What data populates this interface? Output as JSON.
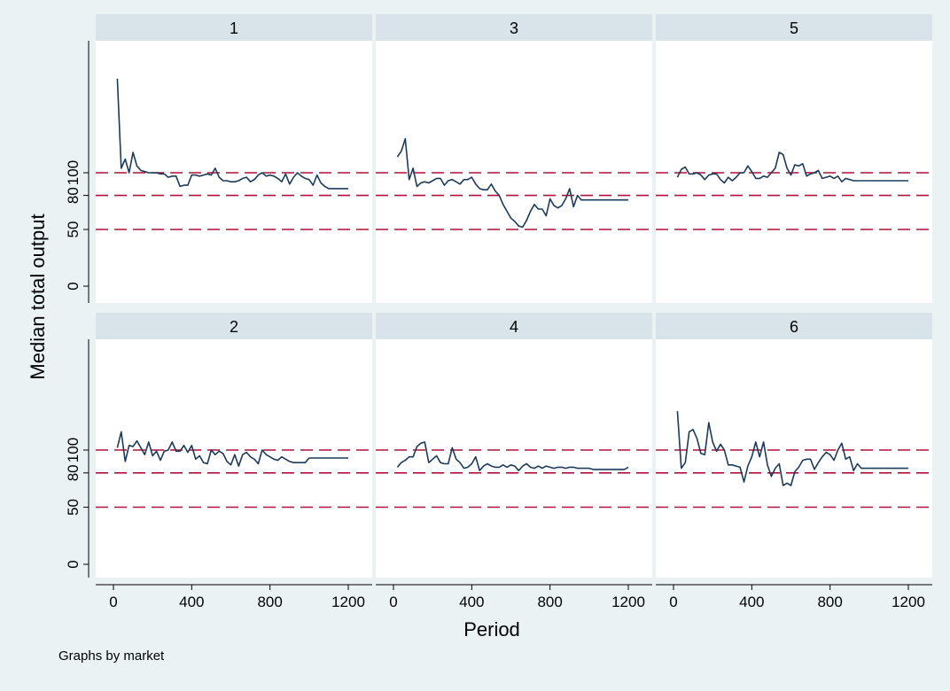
{
  "chart_data": {
    "type": "line",
    "xlabel": "Period",
    "ylabel": "Median total output",
    "note": "Graphs by market",
    "xlim": [
      0,
      1250
    ],
    "ylim": [
      -10,
      185
    ],
    "x_ticks": [
      0,
      400,
      800,
      1200
    ],
    "x_tick_labels": [
      "0",
      "400",
      "800",
      "1200"
    ],
    "y_ticks": [
      0,
      50,
      80,
      100
    ],
    "y_tick_labels": [
      "0",
      "50",
      "80",
      "100"
    ],
    "reference_lines": [
      100,
      80,
      50
    ],
    "colors": {
      "series": "#1c3b5a",
      "reference": "#b0103a",
      "strip": "#d8e4ea",
      "background": "#eaf2f3"
    },
    "panels": [
      {
        "label": "1",
        "x": [
          20,
          40,
          60,
          80,
          100,
          120,
          140,
          160,
          180,
          200,
          220,
          240,
          260,
          280,
          300,
          320,
          340,
          360,
          380,
          400,
          420,
          440,
          460,
          480,
          500,
          520,
          540,
          560,
          580,
          600,
          620,
          640,
          660,
          680,
          700,
          720,
          740,
          760,
          780,
          800,
          820,
          840,
          860,
          880,
          900,
          920,
          940,
          960,
          980,
          1000,
          1020,
          1040,
          1060,
          1080,
          1100,
          1120,
          1140,
          1160,
          1180,
          1200
        ],
        "y": [
          183,
          104,
          112,
          100,
          118,
          106,
          102,
          101,
          100,
          100,
          100,
          99,
          99,
          96,
          97,
          97,
          88,
          89,
          89,
          98,
          98,
          97,
          98,
          99,
          98,
          104,
          96,
          93,
          93,
          92,
          92,
          93,
          95,
          96,
          92,
          94,
          98,
          100,
          97,
          98,
          97,
          95,
          92,
          99,
          90,
          96,
          100,
          97,
          95,
          94,
          89,
          98,
          91,
          88,
          86,
          86,
          86,
          86,
          86,
          86
        ]
      },
      {
        "label": "3",
        "x": [
          20,
          40,
          60,
          80,
          100,
          120,
          140,
          160,
          180,
          200,
          220,
          240,
          260,
          280,
          300,
          320,
          340,
          360,
          380,
          400,
          420,
          440,
          460,
          480,
          500,
          520,
          540,
          560,
          580,
          600,
          620,
          640,
          660,
          680,
          700,
          720,
          740,
          760,
          780,
          800,
          820,
          840,
          860,
          880,
          900,
          920,
          940,
          960,
          980,
          1000,
          1020,
          1040,
          1060,
          1080,
          1100,
          1120,
          1140,
          1160,
          1180,
          1200
        ],
        "y": [
          114,
          119,
          130,
          94,
          104,
          88,
          91,
          92,
          91,
          93,
          95,
          95,
          89,
          93,
          94,
          92,
          90,
          94,
          94,
          96,
          90,
          86,
          85,
          85,
          90,
          84,
          80,
          72,
          66,
          60,
          57,
          53,
          52,
          58,
          66,
          72,
          68,
          68,
          62,
          77,
          71,
          69,
          71,
          77,
          86,
          70,
          80,
          76,
          76,
          76,
          76,
          76,
          76,
          76,
          76,
          76,
          76,
          76,
          76,
          76
        ]
      },
      {
        "label": "5",
        "x": [
          20,
          40,
          60,
          80,
          100,
          120,
          140,
          160,
          180,
          200,
          220,
          240,
          260,
          280,
          300,
          320,
          340,
          360,
          380,
          400,
          420,
          440,
          460,
          480,
          500,
          520,
          540,
          560,
          580,
          600,
          620,
          640,
          660,
          680,
          700,
          720,
          740,
          760,
          780,
          800,
          820,
          840,
          860,
          880,
          900,
          920,
          940,
          960,
          980,
          1000,
          1020,
          1040,
          1060,
          1080,
          1100,
          1120,
          1140,
          1160,
          1180,
          1200
        ],
        "y": [
          96,
          103,
          105,
          99,
          99,
          100,
          98,
          94,
          98,
          99,
          99,
          94,
          91,
          96,
          93,
          96,
          100,
          100,
          106,
          101,
          95,
          95,
          97,
          96,
          100,
          104,
          118,
          116,
          104,
          98,
          107,
          106,
          108,
          97,
          99,
          100,
          102,
          95,
          96,
          97,
          95,
          97,
          92,
          95,
          94,
          93,
          93,
          93,
          93,
          93,
          93,
          93,
          93,
          93,
          93,
          93,
          93,
          93,
          93,
          93
        ]
      },
      {
        "label": "2",
        "x": [
          20,
          40,
          60,
          80,
          100,
          120,
          140,
          160,
          180,
          200,
          220,
          240,
          260,
          280,
          300,
          320,
          340,
          360,
          380,
          400,
          420,
          440,
          460,
          480,
          500,
          520,
          540,
          560,
          580,
          600,
          620,
          640,
          660,
          680,
          700,
          720,
          740,
          760,
          780,
          800,
          820,
          840,
          860,
          880,
          900,
          920,
          940,
          960,
          980,
          1000,
          1020,
          1040,
          1060,
          1080,
          1100,
          1120,
          1140,
          1160,
          1180,
          1200
        ],
        "y": [
          102,
          116,
          90,
          104,
          103,
          108,
          102,
          96,
          107,
          95,
          99,
          91,
          99,
          100,
          107,
          99,
          99,
          104,
          98,
          104,
          92,
          95,
          89,
          88,
          100,
          96,
          99,
          97,
          90,
          87,
          96,
          86,
          96,
          98,
          94,
          92,
          88,
          100,
          96,
          94,
          92,
          91,
          94,
          92,
          90,
          89,
          89,
          89,
          89,
          93,
          93,
          93,
          93,
          93,
          93,
          93,
          93,
          93,
          93,
          93
        ]
      },
      {
        "label": "4",
        "x": [
          20,
          40,
          60,
          80,
          100,
          120,
          140,
          160,
          180,
          200,
          220,
          240,
          260,
          280,
          300,
          320,
          340,
          360,
          380,
          400,
          420,
          440,
          460,
          480,
          500,
          520,
          540,
          560,
          580,
          600,
          620,
          640,
          660,
          680,
          700,
          720,
          740,
          760,
          780,
          800,
          820,
          840,
          860,
          880,
          900,
          920,
          940,
          960,
          980,
          1000,
          1020,
          1040,
          1060,
          1080,
          1100,
          1120,
          1140,
          1160,
          1180,
          1200
        ],
        "y": [
          85,
          89,
          91,
          94,
          94,
          103,
          106,
          107,
          89,
          92,
          95,
          89,
          88,
          88,
          102,
          92,
          89,
          84,
          85,
          88,
          94,
          82,
          86,
          88,
          86,
          85,
          85,
          87,
          85,
          87,
          86,
          82,
          86,
          88,
          85,
          84,
          86,
          84,
          86,
          85,
          84,
          85,
          85,
          84,
          85,
          85,
          84,
          84,
          84,
          84,
          83,
          83,
          83,
          83,
          83,
          83,
          83,
          83,
          83,
          85
        ]
      },
      {
        "label": "6",
        "x": [
          20,
          40,
          60,
          80,
          100,
          120,
          140,
          160,
          180,
          200,
          220,
          240,
          260,
          280,
          300,
          320,
          340,
          360,
          380,
          400,
          420,
          440,
          460,
          480,
          500,
          520,
          540,
          560,
          580,
          600,
          620,
          640,
          660,
          680,
          700,
          720,
          740,
          760,
          780,
          800,
          820,
          840,
          860,
          880,
          900,
          920,
          940,
          960,
          980,
          1000,
          1020,
          1040,
          1060,
          1080,
          1100,
          1120,
          1140,
          1160,
          1180,
          1200
        ],
        "y": [
          134,
          84,
          89,
          116,
          118,
          110,
          97,
          96,
          124,
          107,
          99,
          105,
          100,
          87,
          87,
          86,
          85,
          72,
          86,
          94,
          107,
          94,
          107,
          87,
          77,
          84,
          88,
          69,
          71,
          69,
          81,
          85,
          91,
          92,
          92,
          83,
          89,
          94,
          98,
          96,
          91,
          100,
          106,
          92,
          94,
          82,
          88,
          84,
          84,
          84,
          84,
          84,
          84,
          84,
          84,
          84,
          84,
          84,
          84,
          84
        ]
      }
    ]
  }
}
